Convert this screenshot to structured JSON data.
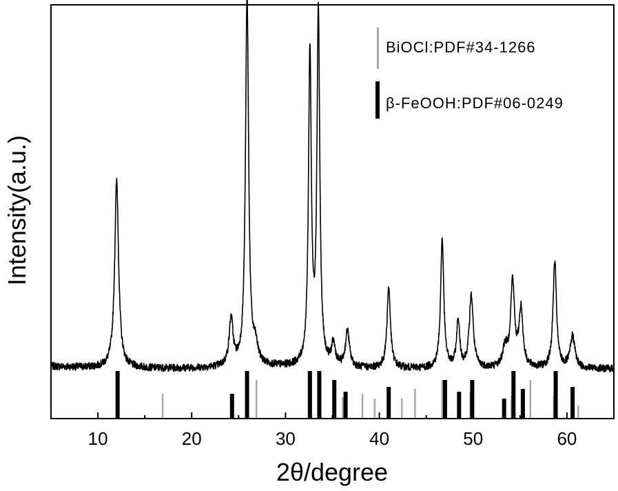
{
  "chart_data": {
    "type": "line",
    "xlabel": "2θ/degree",
    "ylabel": "Intensity(a.u.)",
    "xlim": [
      5,
      65
    ],
    "xticks": [
      10,
      20,
      30,
      40,
      50,
      60
    ],
    "y_ticks_shown": false,
    "colors": {
      "pattern": "#000000",
      "biocl": "#a8a8a8",
      "feooh": "#000000"
    },
    "legend": {
      "position": "top-right",
      "entries": [
        {
          "label": "BiOCl:PDF#34-1266",
          "color": "#a8a8a8"
        },
        {
          "label": "β-FeOOH:PDF#06-0249",
          "color": "#000000"
        }
      ]
    },
    "pattern": {
      "baseline": 6.5,
      "noise": 1.1,
      "peaks": [
        {
          "x": 12.0,
          "h": 88,
          "w": 0.25
        },
        {
          "x": 24.2,
          "h": 22,
          "w": 0.25
        },
        {
          "x": 25.9,
          "h": 174,
          "w": 0.2
        },
        {
          "x": 26.8,
          "h": 8,
          "w": 0.3
        },
        {
          "x": 32.6,
          "h": 147,
          "w": 0.18
        },
        {
          "x": 33.5,
          "h": 166,
          "w": 0.18
        },
        {
          "x": 35.1,
          "h": 10,
          "w": 0.25
        },
        {
          "x": 36.6,
          "h": 17,
          "w": 0.25
        },
        {
          "x": 41.0,
          "h": 38,
          "w": 0.22
        },
        {
          "x": 46.7,
          "h": 61,
          "w": 0.2
        },
        {
          "x": 48.4,
          "h": 22,
          "w": 0.2
        },
        {
          "x": 49.8,
          "h": 34,
          "w": 0.25
        },
        {
          "x": 53.4,
          "h": 9,
          "w": 0.3
        },
        {
          "x": 54.2,
          "h": 40,
          "w": 0.25
        },
        {
          "x": 55.1,
          "h": 27,
          "w": 0.25
        },
        {
          "x": 58.7,
          "h": 50,
          "w": 0.22
        },
        {
          "x": 60.6,
          "h": 15,
          "w": 0.3
        }
      ]
    },
    "reference": {
      "BiOCl": [
        {
          "x": 12.0,
          "i": 55
        },
        {
          "x": 16.9,
          "i": 35
        },
        {
          "x": 25.9,
          "i": 60
        },
        {
          "x": 26.9,
          "i": 55
        },
        {
          "x": 33.5,
          "i": 50
        },
        {
          "x": 36.1,
          "i": 30
        },
        {
          "x": 38.2,
          "i": 35
        },
        {
          "x": 39.5,
          "i": 28
        },
        {
          "x": 40.9,
          "i": 35
        },
        {
          "x": 42.4,
          "i": 28
        },
        {
          "x": 43.8,
          "i": 42
        },
        {
          "x": 46.7,
          "i": 55
        },
        {
          "x": 49.7,
          "i": 38
        },
        {
          "x": 54.1,
          "i": 32
        },
        {
          "x": 56.1,
          "i": 55
        },
        {
          "x": 58.6,
          "i": 32
        },
        {
          "x": 61.2,
          "i": 18
        }
      ],
      "FeOOH": [
        {
          "x": 12.1,
          "i": 68
        },
        {
          "x": 24.3,
          "i": 35
        },
        {
          "x": 25.9,
          "i": 68
        },
        {
          "x": 32.6,
          "i": 68
        },
        {
          "x": 33.6,
          "i": 68
        },
        {
          "x": 35.2,
          "i": 55
        },
        {
          "x": 36.4,
          "i": 38
        },
        {
          "x": 41.0,
          "i": 45
        },
        {
          "x": 47.0,
          "i": 55
        },
        {
          "x": 48.5,
          "i": 38
        },
        {
          "x": 49.9,
          "i": 55
        },
        {
          "x": 53.3,
          "i": 28
        },
        {
          "x": 54.3,
          "i": 68
        },
        {
          "x": 55.3,
          "i": 42
        },
        {
          "x": 58.8,
          "i": 68
        },
        {
          "x": 60.6,
          "i": 45
        }
      ]
    }
  }
}
